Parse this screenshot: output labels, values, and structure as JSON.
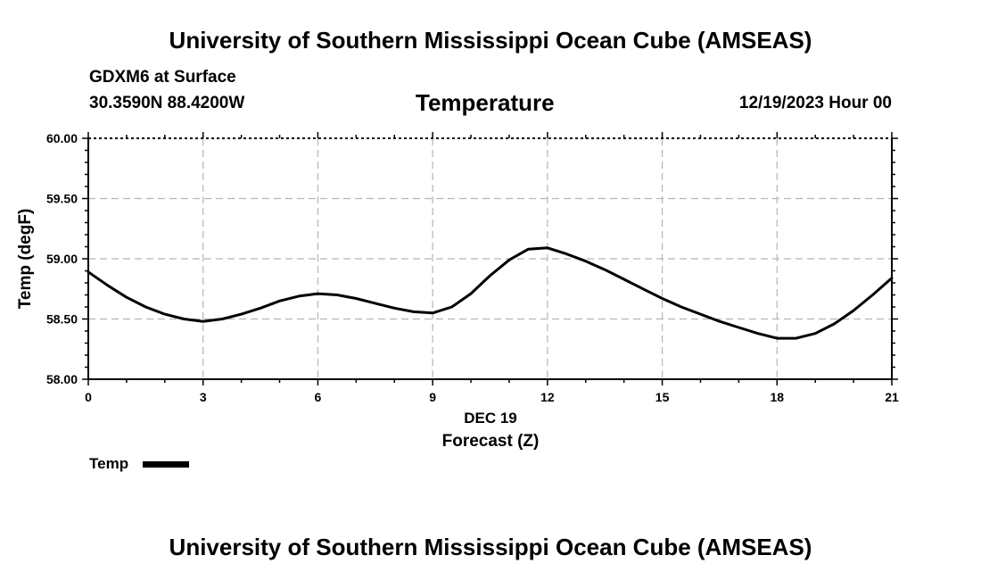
{
  "header": {
    "title": "University of Southern Mississippi Ocean Cube (AMSEAS)",
    "station": "GDXM6 at Surface",
    "coordinates": "30.3590N  88.4200W",
    "variable": "Temperature",
    "valid_time": "12/19/2023 Hour 00"
  },
  "footer": {
    "title": "University of Southern Mississippi Ocean Cube (AMSEAS)"
  },
  "legend": {
    "label": "Temp"
  },
  "chart_data": {
    "type": "line",
    "title": "Temperature",
    "xlabel": "Forecast (Z)",
    "xsublabel": "DEC 19",
    "ylabel": "Temp (degF)",
    "xlim": [
      0,
      21
    ],
    "ylim": [
      58.0,
      60.0
    ],
    "xticks": [
      0,
      3,
      6,
      9,
      12,
      15,
      18,
      21
    ],
    "xtick_labels": [
      "0",
      "3",
      "6",
      "9",
      "12",
      "15",
      "18",
      "21"
    ],
    "yticks": [
      58.0,
      58.5,
      59.0,
      59.5,
      60.0
    ],
    "ytick_labels": [
      "58.00",
      "58.50",
      "59.00",
      "59.50",
      "60.00"
    ],
    "grid": true,
    "legend_position": "bottom-left",
    "series": [
      {
        "name": "Temp",
        "color": "#000000",
        "x": [
          0,
          0.5,
          1,
          1.5,
          2,
          2.5,
          3,
          3.5,
          4,
          4.5,
          5,
          5.5,
          6,
          6.5,
          7,
          7.5,
          8,
          8.5,
          9,
          9.5,
          10,
          10.5,
          11,
          11.5,
          12,
          12.5,
          13,
          13.5,
          14,
          14.5,
          15,
          15.5,
          16,
          16.5,
          17,
          17.5,
          18,
          18.5,
          19,
          19.5,
          20,
          20.5,
          21
        ],
        "values": [
          58.89,
          58.78,
          58.68,
          58.6,
          58.54,
          58.5,
          58.48,
          58.5,
          58.54,
          58.59,
          58.65,
          58.69,
          58.71,
          58.7,
          58.67,
          58.63,
          58.59,
          58.56,
          58.55,
          58.6,
          58.71,
          58.86,
          58.99,
          59.08,
          59.09,
          59.04,
          58.98,
          58.91,
          58.83,
          58.75,
          58.67,
          58.6,
          58.54,
          58.48,
          58.43,
          58.38,
          58.34,
          58.34,
          58.38,
          58.46,
          58.57,
          58.7,
          58.84
        ]
      }
    ]
  }
}
